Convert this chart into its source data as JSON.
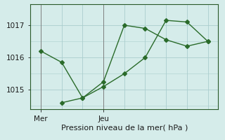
{
  "line1_x": [
    0,
    1,
    2,
    3,
    4,
    5,
    6,
    7,
    8
  ],
  "line1_y": [
    1016.2,
    1015.85,
    1014.75,
    1015.25,
    1017.0,
    1016.9,
    1016.55,
    1016.35,
    1016.5
  ],
  "line2_x": [
    1,
    2,
    3,
    4,
    5,
    6,
    7,
    8
  ],
  "line2_y": [
    1014.6,
    1014.75,
    1015.1,
    1015.5,
    1016.0,
    1017.15,
    1017.1,
    1016.5
  ],
  "line_color": "#2a6b2a",
  "background_color": "#d5ecea",
  "grid_color": "#aacece",
  "spine_color": "#2a5a2a",
  "xlabel": "Pression niveau de la mer( hPa )",
  "ylim": [
    1014.4,
    1017.65
  ],
  "yticks": [
    1015,
    1016,
    1017
  ],
  "xtick_labels_pos": [
    0,
    3
  ],
  "xtick_labels_text": [
    "Mer",
    "Jeu"
  ],
  "n_points": 9,
  "vline_x": [
    0,
    3
  ],
  "label_fontsize": 8,
  "tick_fontsize": 7.5,
  "marker_size": 3.0,
  "line_width": 1.0
}
